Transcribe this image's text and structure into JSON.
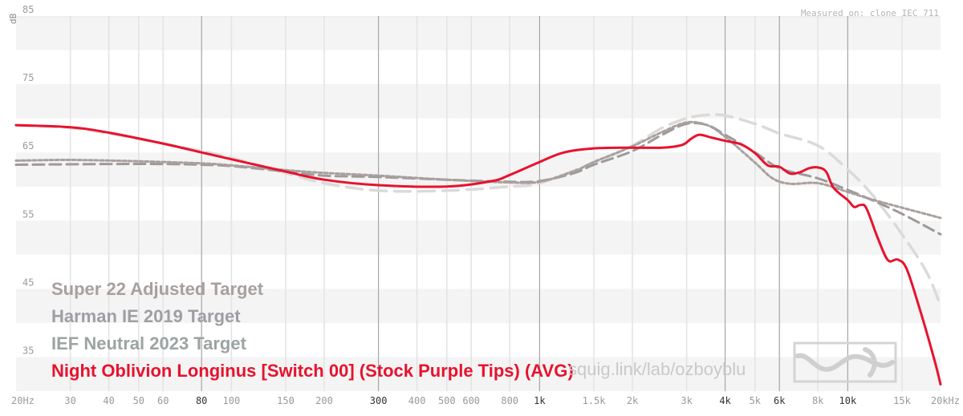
{
  "chart_data": {
    "type": "line",
    "title": "",
    "xlabel": "Hz",
    "ylabel": "dB",
    "x_scale": "log",
    "xlim": [
      20,
      20000
    ],
    "ylim": [
      30,
      85
    ],
    "y_ticks": [
      35,
      45,
      55,
      65,
      75,
      85
    ],
    "x_ticks": [
      {
        "value": 20,
        "label": "20Hz",
        "major": false
      },
      {
        "value": 30,
        "label": "30",
        "major": false
      },
      {
        "value": 40,
        "label": "40",
        "major": false
      },
      {
        "value": 50,
        "label": "50",
        "major": false
      },
      {
        "value": 60,
        "label": "60",
        "major": false
      },
      {
        "value": 80,
        "label": "80",
        "major": true
      },
      {
        "value": 100,
        "label": "100",
        "major": false
      },
      {
        "value": 150,
        "label": "150",
        "major": false
      },
      {
        "value": 200,
        "label": "200",
        "major": false
      },
      {
        "value": 300,
        "label": "300",
        "major": true
      },
      {
        "value": 400,
        "label": "400",
        "major": false
      },
      {
        "value": 500,
        "label": "500",
        "major": false
      },
      {
        "value": 600,
        "label": "600",
        "major": false
      },
      {
        "value": 800,
        "label": "800",
        "major": false
      },
      {
        "value": 1000,
        "label": "1k",
        "major": true
      },
      {
        "value": 1500,
        "label": "1.5k",
        "major": false
      },
      {
        "value": 2000,
        "label": "2k",
        "major": false
      },
      {
        "value": 3000,
        "label": "3k",
        "major": false
      },
      {
        "value": 4000,
        "label": "4k",
        "major": true
      },
      {
        "value": 5000,
        "label": "5k",
        "major": false
      },
      {
        "value": 6000,
        "label": "6k",
        "major": true
      },
      {
        "value": 8000,
        "label": "8k",
        "major": false
      },
      {
        "value": 10000,
        "label": "10k",
        "major": true
      },
      {
        "value": 15000,
        "label": "15k",
        "major": false
      },
      {
        "value": 20000,
        "label": "20kHz",
        "major": false
      }
    ],
    "series": [
      {
        "name": "Super 22 Adjusted Target",
        "color": "#a8a09c",
        "style": "dotted",
        "points": [
          [
            20,
            63.8
          ],
          [
            30,
            63.9
          ],
          [
            50,
            63.7
          ],
          [
            80,
            63.4
          ],
          [
            100,
            63.1
          ],
          [
            150,
            62.4
          ],
          [
            200,
            62.0
          ],
          [
            300,
            61.6
          ],
          [
            500,
            61.0
          ],
          [
            800,
            60.6
          ],
          [
            1000,
            60.7
          ],
          [
            1300,
            62.3
          ],
          [
            1500,
            63.6
          ],
          [
            2000,
            65.9
          ],
          [
            2500,
            68.0
          ],
          [
            3000,
            69.4
          ],
          [
            3500,
            69.0
          ],
          [
            4000,
            67.3
          ],
          [
            5000,
            63.5
          ],
          [
            5700,
            61.2
          ],
          [
            6500,
            60.4
          ],
          [
            8000,
            60.5
          ],
          [
            10000,
            59.2
          ],
          [
            12000,
            58.1
          ],
          [
            15000,
            56.9
          ],
          [
            20000,
            55.4
          ]
        ]
      },
      {
        "name": "Harman IE 2019 Target",
        "color": "#9e9a9c",
        "style": "dashed",
        "points": [
          [
            20,
            63.2
          ],
          [
            40,
            63.3
          ],
          [
            60,
            63.3
          ],
          [
            80,
            63.2
          ],
          [
            100,
            63.0
          ],
          [
            150,
            62.2
          ],
          [
            200,
            61.6
          ],
          [
            300,
            61.4
          ],
          [
            500,
            61.0
          ],
          [
            800,
            60.7
          ],
          [
            1000,
            60.8
          ],
          [
            1300,
            62.0
          ],
          [
            1500,
            63.2
          ],
          [
            2000,
            65.2
          ],
          [
            2500,
            67.6
          ],
          [
            3000,
            69.2
          ],
          [
            3500,
            69.0
          ],
          [
            4000,
            67.6
          ],
          [
            5000,
            65.0
          ],
          [
            6000,
            62.7
          ],
          [
            8000,
            61.2
          ],
          [
            10000,
            59.5
          ],
          [
            12000,
            58.0
          ],
          [
            15000,
            56.0
          ],
          [
            20000,
            53.0
          ]
        ]
      },
      {
        "name": "IEF Neutral 2023 Target",
        "color": "#dadada",
        "style": "longdash",
        "points": [
          [
            20,
            69.0
          ],
          [
            30,
            68.6
          ],
          [
            40,
            67.8
          ],
          [
            60,
            66.3
          ],
          [
            80,
            65.2
          ],
          [
            100,
            64.2
          ],
          [
            150,
            62.0
          ],
          [
            200,
            60.5
          ],
          [
            300,
            59.4
          ],
          [
            500,
            59.4
          ],
          [
            800,
            60.0
          ],
          [
            1000,
            60.5
          ],
          [
            1500,
            63.5
          ],
          [
            2000,
            66.0
          ],
          [
            2500,
            68.6
          ],
          [
            3000,
            70.0
          ],
          [
            3500,
            70.5
          ],
          [
            4000,
            70.4
          ],
          [
            5000,
            69.2
          ],
          [
            6000,
            67.8
          ],
          [
            8000,
            66.0
          ],
          [
            10000,
            62.5
          ],
          [
            12000,
            58.8
          ],
          [
            15000,
            53.0
          ],
          [
            18000,
            47.5
          ],
          [
            20000,
            42.5
          ]
        ]
      },
      {
        "name": "Night Oblivion Longinus [Switch 00] (Stock Purple Tips) (AVG)",
        "color": "#e8122d",
        "style": "solid",
        "points": [
          [
            20,
            69.0
          ],
          [
            30,
            68.7
          ],
          [
            40,
            67.9
          ],
          [
            60,
            66.3
          ],
          [
            80,
            65.0
          ],
          [
            100,
            64.0
          ],
          [
            150,
            62.2
          ],
          [
            200,
            61.0
          ],
          [
            300,
            60.2
          ],
          [
            500,
            60.0
          ],
          [
            700,
            60.8
          ],
          [
            800,
            61.7
          ],
          [
            1000,
            63.6
          ],
          [
            1200,
            65.0
          ],
          [
            1500,
            65.6
          ],
          [
            2000,
            65.7
          ],
          [
            2500,
            65.7
          ],
          [
            2900,
            66.1
          ],
          [
            3100,
            67.0
          ],
          [
            3300,
            67.6
          ],
          [
            3600,
            67.2
          ],
          [
            4000,
            66.7
          ],
          [
            4500,
            66.2
          ],
          [
            5000,
            64.9
          ],
          [
            5500,
            63.1
          ],
          [
            6000,
            62.9
          ],
          [
            6500,
            61.9
          ],
          [
            7000,
            62.1
          ],
          [
            7500,
            62.7
          ],
          [
            8000,
            62.8
          ],
          [
            8500,
            62.2
          ],
          [
            9000,
            59.8
          ],
          [
            10000,
            58.0
          ],
          [
            10500,
            57.0
          ],
          [
            11000,
            57.3
          ],
          [
            11500,
            56.8
          ],
          [
            12500,
            52.5
          ],
          [
            13500,
            49.2
          ],
          [
            14500,
            49.3
          ],
          [
            15500,
            48.0
          ],
          [
            17000,
            42.5
          ],
          [
            19000,
            35.0
          ],
          [
            20000,
            31.0
          ]
        ]
      }
    ],
    "legend_position": "bottom-left"
  },
  "header": {
    "measured_on": "Measured on: clone IEC 711"
  },
  "watermark": {
    "text": "squig.link/lab/ozboyblu"
  },
  "axis": {
    "y_label": "dB"
  }
}
